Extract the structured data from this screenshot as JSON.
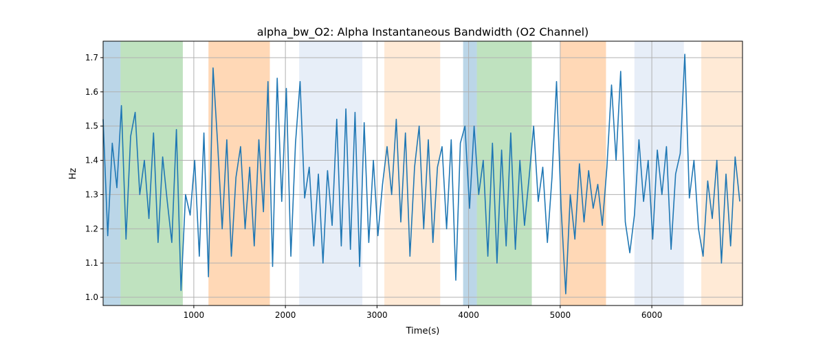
{
  "chart_data": {
    "type": "line",
    "title": "alpha_bw_O2: Alpha Instantaneous Bandwidth (O2 Channel)",
    "xlabel": "Time(s)",
    "ylabel": "Hz",
    "xlim": [
      10,
      6990
    ],
    "ylim": [
      0.976,
      1.748
    ],
    "xticks": [
      1000,
      2000,
      3000,
      4000,
      5000,
      6000
    ],
    "yticks": [
      1.0,
      1.1,
      1.2,
      1.3,
      1.4,
      1.5,
      1.6,
      1.7
    ],
    "ytick_labels": [
      "1.0",
      "1.1",
      "1.2",
      "1.3",
      "1.4",
      "1.5",
      "1.6",
      "1.7"
    ],
    "grid": true,
    "line_color": "#1f77b4",
    "spans": [
      {
        "start": 10,
        "end": 200,
        "color": "#1f77b4",
        "opacity": 0.3
      },
      {
        "start": 200,
        "end": 880,
        "color": "#2ca02c",
        "opacity": 0.3
      },
      {
        "start": 1160,
        "end": 1830,
        "color": "#ff7f0e",
        "opacity": 0.3
      },
      {
        "start": 2150,
        "end": 2840,
        "color": "#aec7e8",
        "opacity": 0.3
      },
      {
        "start": 3080,
        "end": 3690,
        "color": "#ffbb78",
        "opacity": 0.3
      },
      {
        "start": 3940,
        "end": 4090,
        "color": "#1f77b4",
        "opacity": 0.3
      },
      {
        "start": 4090,
        "end": 4690,
        "color": "#2ca02c",
        "opacity": 0.3
      },
      {
        "start": 5000,
        "end": 5500,
        "color": "#ff7f0e",
        "opacity": 0.3
      },
      {
        "start": 5810,
        "end": 6350,
        "color": "#aec7e8",
        "opacity": 0.3
      },
      {
        "start": 6540,
        "end": 6990,
        "color": "#ffbb78",
        "opacity": 0.3
      }
    ],
    "x": [
      10,
      60,
      110,
      160,
      210,
      260,
      310,
      360,
      410,
      460,
      510,
      560,
      610,
      660,
      710,
      760,
      810,
      860,
      910,
      960,
      1010,
      1060,
      1110,
      1160,
      1210,
      1260,
      1310,
      1360,
      1410,
      1460,
      1510,
      1560,
      1610,
      1660,
      1710,
      1760,
      1810,
      1860,
      1910,
      1960,
      2010,
      2060,
      2110,
      2160,
      2210,
      2260,
      2310,
      2360,
      2410,
      2460,
      2510,
      2560,
      2610,
      2660,
      2710,
      2760,
      2810,
      2860,
      2910,
      2960,
      3010,
      3060,
      3110,
      3160,
      3210,
      3260,
      3310,
      3360,
      3410,
      3460,
      3510,
      3560,
      3610,
      3660,
      3710,
      3760,
      3810,
      3860,
      3910,
      3960,
      4010,
      4060,
      4110,
      4160,
      4210,
      4260,
      4310,
      4360,
      4410,
      4460,
      4510,
      4560,
      4610,
      4660,
      4710,
      4760,
      4810,
      4860,
      4910,
      4960,
      5010,
      5060,
      5110,
      5160,
      5210,
      5260,
      5310,
      5360,
      5410,
      5460,
      5510,
      5560,
      5610,
      5660,
      5710,
      5760,
      5810,
      5860,
      5910,
      5960,
      6010,
      6060,
      6110,
      6160,
      6210,
      6260,
      6310,
      6360,
      6410,
      6460,
      6510,
      6560,
      6610,
      6660,
      6710,
      6760,
      6810,
      6860,
      6910,
      6960
    ],
    "y": [
      1.52,
      1.18,
      1.45,
      1.32,
      1.56,
      1.17,
      1.47,
      1.54,
      1.3,
      1.4,
      1.23,
      1.48,
      1.16,
      1.41,
      1.28,
      1.16,
      1.49,
      1.02,
      1.3,
      1.24,
      1.4,
      1.12,
      1.48,
      1.06,
      1.67,
      1.45,
      1.2,
      1.46,
      1.12,
      1.35,
      1.44,
      1.2,
      1.38,
      1.15,
      1.46,
      1.25,
      1.63,
      1.09,
      1.64,
      1.28,
      1.61,
      1.12,
      1.45,
      1.63,
      1.29,
      1.38,
      1.15,
      1.36,
      1.1,
      1.37,
      1.21,
      1.52,
      1.15,
      1.55,
      1.14,
      1.54,
      1.09,
      1.51,
      1.16,
      1.4,
      1.18,
      1.33,
      1.44,
      1.3,
      1.52,
      1.22,
      1.48,
      1.12,
      1.38,
      1.5,
      1.2,
      1.46,
      1.16,
      1.38,
      1.44,
      1.2,
      1.46,
      1.05,
      1.45,
      1.5,
      1.26,
      1.5,
      1.3,
      1.4,
      1.12,
      1.45,
      1.1,
      1.43,
      1.15,
      1.48,
      1.14,
      1.4,
      1.21,
      1.35,
      1.5,
      1.28,
      1.38,
      1.16,
      1.35,
      1.63,
      1.26,
      1.01,
      1.3,
      1.17,
      1.39,
      1.22,
      1.37,
      1.26,
      1.33,
      1.21,
      1.38,
      1.62,
      1.4,
      1.66,
      1.22,
      1.13,
      1.24,
      1.46,
      1.28,
      1.4,
      1.17,
      1.43,
      1.3,
      1.44,
      1.14,
      1.36,
      1.42,
      1.71,
      1.29,
      1.4,
      1.2,
      1.12,
      1.34,
      1.23,
      1.4,
      1.1,
      1.36,
      1.15,
      1.41,
      1.28
    ]
  }
}
